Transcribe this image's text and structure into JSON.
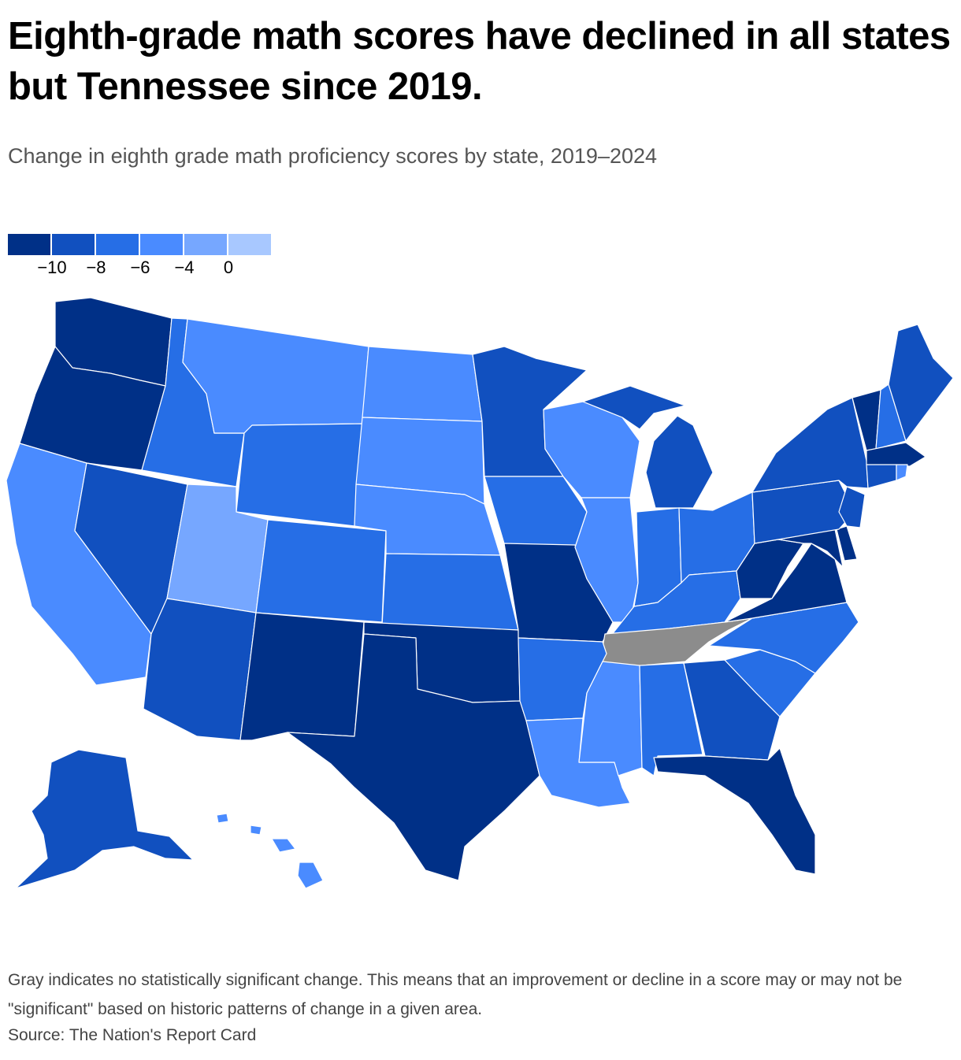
{
  "title": "Eighth-grade math scores have declined in all states but Tennessee since 2019.",
  "subtitle": "Change in eighth grade math proficiency scores by state, 2019–2024",
  "legend": {
    "colors": [
      "#003087",
      "#1150bf",
      "#266ee6",
      "#4a8bff",
      "#76a7ff",
      "#a8c8ff"
    ],
    "labels": [
      "−10",
      "−8",
      "−6",
      "−4",
      "0"
    ]
  },
  "colors": {
    "c10": "#003087",
    "c8": "#1150bf",
    "c6": "#266ee6",
    "c4": "#4a8bff",
    "c0": "#76a7ff",
    "gray": "#8c8c8c"
  },
  "notes": "Gray indicates no statistically significant change. This means that an improvement or decline in a score may or may not be \"significant\" based on historic patterns of change in a given area.",
  "source": "Source: The Nation's Report Card"
}
